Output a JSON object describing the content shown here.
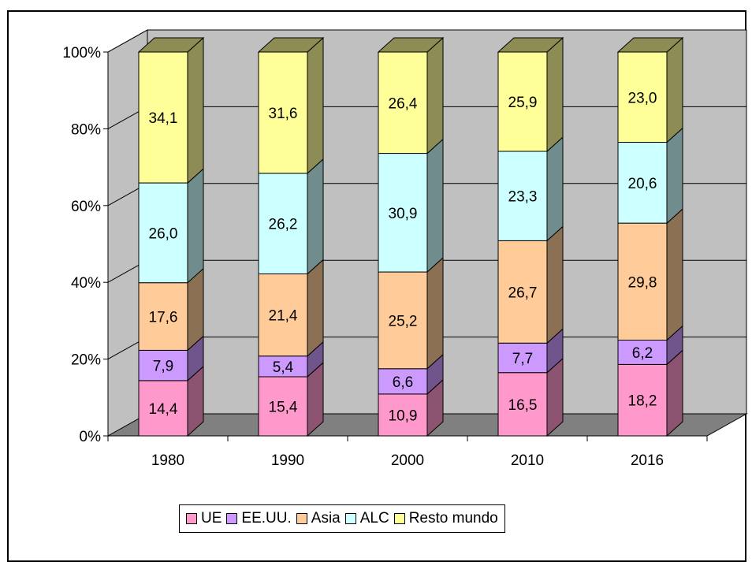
{
  "chart_data": {
    "type": "bar",
    "stacked": true,
    "percent_stacked": true,
    "three_d": true,
    "categories": [
      "1980",
      "1990",
      "2000",
      "2010",
      "2016"
    ],
    "series": [
      {
        "name": "UE",
        "color": "#FF99CC",
        "values": [
          14.4,
          15.4,
          10.9,
          16.5,
          18.2
        ],
        "labels": [
          "14,4",
          "15,4",
          "10,9",
          "16,5",
          "18,2"
        ]
      },
      {
        "name": "EE.UU.",
        "color": "#CC99FF",
        "values": [
          7.9,
          5.4,
          6.6,
          7.7,
          6.2
        ],
        "labels": [
          "7,9",
          "5,4",
          "6,6",
          "7,7",
          "6,2"
        ]
      },
      {
        "name": "Asia",
        "color": "#FFCC99",
        "values": [
          17.6,
          21.4,
          25.2,
          26.7,
          29.8
        ],
        "labels": [
          "17,6",
          "21,4",
          "25,2",
          "26,7",
          "29,8"
        ]
      },
      {
        "name": "ALC",
        "color": "#CCFFFF",
        "values": [
          26.0,
          26.2,
          30.9,
          23.3,
          20.6
        ],
        "labels": [
          "26,0",
          "26,2",
          "30,9",
          "23,3",
          "20,6"
        ]
      },
      {
        "name": "Resto mundo",
        "color": "#FFFF99",
        "values": [
          34.1,
          31.6,
          26.4,
          25.9,
          23.0
        ],
        "labels": [
          "34,1",
          "31,6",
          "26,4",
          "25,9",
          "23,0"
        ]
      }
    ],
    "yticks": [
      "0%",
      "20%",
      "40%",
      "60%",
      "80%",
      "100%"
    ],
    "ylim": [
      0,
      100
    ],
    "grid": true,
    "legend_position": "bottom",
    "colors": {
      "wall": "#C0C0C0",
      "floor": "#808080",
      "grid": "#000000"
    }
  }
}
